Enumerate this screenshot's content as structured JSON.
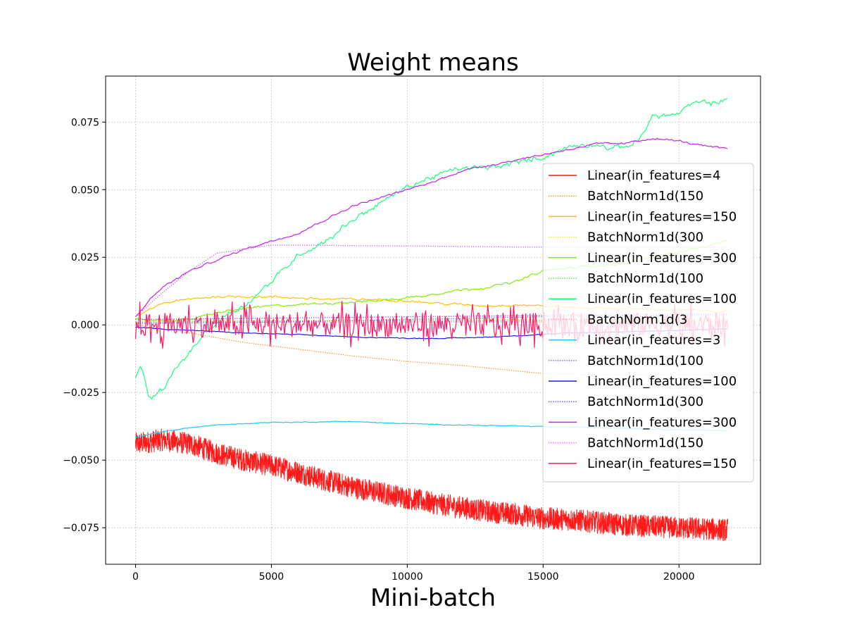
{
  "chart_data": {
    "type": "line",
    "title": "Weight means",
    "xlabel": "Mini-batch",
    "ylabel": "",
    "xlim": [
      -1100,
      23000
    ],
    "ylim": [
      -0.0885,
      0.092
    ],
    "x_ticks": [
      0,
      5000,
      10000,
      15000,
      20000
    ],
    "x_tick_labels": [
      "0",
      "5000",
      "10000",
      "15000",
      "20000"
    ],
    "y_ticks": [
      -0.075,
      -0.05,
      -0.025,
      0.0,
      0.025,
      0.05,
      0.075
    ],
    "y_tick_labels": [
      "−0.075",
      "−0.050",
      "−0.025",
      "0.000",
      "0.025",
      "0.050",
      "0.075"
    ],
    "grid": true,
    "legend_position": "center-right",
    "series": [
      {
        "name": "Linear(in_features=4",
        "color": "#ff1a1a",
        "style": "solid",
        "noise": 0.0042,
        "noise_type": "dense",
        "x": [
          0,
          1000,
          2000,
          3000,
          4000,
          5000,
          6000,
          7000,
          8000,
          9000,
          10000,
          11000,
          12000,
          13000,
          14000,
          15000,
          16000,
          17000,
          18000,
          19000,
          20000,
          21000,
          21800
        ],
        "y": [
          -0.044,
          -0.0425,
          -0.044,
          -0.0475,
          -0.05,
          -0.052,
          -0.0545,
          -0.0575,
          -0.06,
          -0.062,
          -0.064,
          -0.066,
          -0.0675,
          -0.069,
          -0.07,
          -0.0715,
          -0.072,
          -0.073,
          -0.074,
          -0.0745,
          -0.075,
          -0.0755,
          -0.0758
        ]
      },
      {
        "name": "BatchNorm1d(150",
        "color": "#ff7f0e",
        "style": "dotted",
        "noise": 0,
        "x": [
          0,
          2000,
          4000,
          6000,
          8000,
          10000,
          12000,
          14000,
          15000,
          16000,
          18000,
          20000,
          21800
        ],
        "y": [
          0.0,
          -0.003,
          -0.0065,
          -0.009,
          -0.0115,
          -0.0135,
          -0.015,
          -0.017,
          -0.018,
          -0.0183,
          -0.0185,
          -0.0185,
          -0.0185
        ]
      },
      {
        "name": "Linear(in_features=150",
        "color": "#ffc000",
        "style": "solid",
        "noise": 0.0006,
        "noise_type": "smooth",
        "x": [
          0,
          1000,
          2000,
          3000,
          4000,
          5000,
          6000,
          7000,
          8000,
          9000,
          10000,
          11000,
          12000,
          13000,
          14000,
          15000,
          16000,
          18000,
          20000,
          21800
        ],
        "y": [
          0.003,
          0.008,
          0.0095,
          0.0105,
          0.0105,
          0.0103,
          0.01,
          0.0095,
          0.0095,
          0.0093,
          0.009,
          0.008,
          0.0075,
          0.007,
          0.0075,
          0.007,
          0.0065,
          0.006,
          0.0055,
          0.005
        ]
      },
      {
        "name": "BatchNorm1d(300",
        "color": "#e8e800",
        "style": "dotted",
        "noise": 0,
        "x": [
          0,
          5000,
          10000,
          15000,
          20000,
          21800
        ],
        "y": [
          0.0015,
          0.0015,
          0.002,
          0.002,
          0.002,
          0.002
        ]
      },
      {
        "name": "Linear(in_features=300",
        "color": "#7ff000",
        "style": "solid",
        "noise": 0.0006,
        "noise_type": "smooth",
        "x": [
          0,
          1000,
          2000,
          3000,
          4000,
          5000,
          6000,
          7000,
          8000,
          9000,
          10000,
          11000,
          12000,
          13000,
          14000,
          15000,
          16000,
          17000,
          18000,
          19000,
          20000,
          21000,
          21800
        ],
        "y": [
          0.002,
          0.0018,
          0.002,
          0.0045,
          0.006,
          0.007,
          0.0075,
          0.008,
          0.0085,
          0.009,
          0.01,
          0.0115,
          0.013,
          0.014,
          0.016,
          0.02,
          0.021,
          0.022,
          0.0225,
          0.025,
          0.027,
          0.029,
          0.031
        ]
      },
      {
        "name": "BatchNorm1d(100",
        "color": "#33e533",
        "style": "dotted",
        "noise": 0,
        "x": [
          0,
          5000,
          10000,
          15000,
          20000,
          21800
        ],
        "y": [
          0.001,
          0.0015,
          0.0015,
          0.0015,
          0.0015,
          0.0015
        ]
      },
      {
        "name": "Linear(in_features=100",
        "color": "#19ff7a",
        "style": "solid",
        "noise": 0.0013,
        "noise_type": "smooth",
        "x": [
          0,
          200,
          500,
          1000,
          1500,
          2000,
          2500,
          3000,
          3500,
          4000,
          5000,
          6000,
          7000,
          8000,
          9000,
          10000,
          11000,
          12000,
          13000,
          14000,
          15000,
          16000,
          17000,
          17500,
          18000,
          18500,
          19000,
          20000,
          20500,
          21000,
          21800
        ],
        "y": [
          -0.019,
          -0.014,
          -0.028,
          -0.024,
          -0.016,
          -0.01,
          -0.0035,
          0.001,
          0.005,
          0.007,
          0.016,
          0.026,
          0.031,
          0.039,
          0.045,
          0.051,
          0.055,
          0.058,
          0.058,
          0.06,
          0.062,
          0.066,
          0.067,
          0.065,
          0.066,
          0.068,
          0.077,
          0.078,
          0.082,
          0.082,
          0.083
        ]
      },
      {
        "name": "BatchNorm1d(3",
        "color": "#ff88d0",
        "style": "dotted",
        "noise": 0,
        "x": [
          0,
          5000,
          10000,
          15000,
          20000,
          21800
        ],
        "y": [
          0.0008,
          0.001,
          0.001,
          0.001,
          0.001,
          0.001
        ]
      },
      {
        "name": "Linear(in_features=3",
        "color": "#19c8ff",
        "style": "solid",
        "noise": 0.0002,
        "noise_type": "smooth",
        "x": [
          0,
          1000,
          2000,
          3000,
          4000,
          5000,
          6000,
          7000,
          8000,
          9000,
          10000,
          11000,
          12000,
          13000,
          14000,
          15000,
          16000,
          17000,
          18000,
          19000,
          20000,
          21000,
          21800
        ],
        "y": [
          -0.0415,
          -0.0395,
          -0.038,
          -0.037,
          -0.0365,
          -0.036,
          -0.036,
          -0.0358,
          -0.0357,
          -0.0362,
          -0.0365,
          -0.0368,
          -0.037,
          -0.0372,
          -0.0374,
          -0.0376,
          -0.0378,
          -0.038,
          -0.0382,
          -0.0385,
          -0.0388,
          -0.039,
          -0.0392
        ]
      },
      {
        "name": "BatchNorm1d(100",
        "color": "#3b6bff",
        "style": "dotted",
        "noise": 0,
        "x": [
          0,
          5000,
          10000,
          15000,
          20000,
          21800
        ],
        "y": [
          0.0005,
          0.001,
          0.002,
          0.003,
          0.0035,
          0.0035
        ]
      },
      {
        "name": "Linear(in_features=100",
        "color": "#1a1aff",
        "style": "solid",
        "noise": 0.0002,
        "noise_type": "smooth",
        "x": [
          0,
          1000,
          2000,
          3000,
          4000,
          5000,
          6000,
          7000,
          8000,
          9000,
          10000,
          11000,
          12000,
          13000,
          14000,
          15000,
          16000,
          18000,
          20000,
          21800
        ],
        "y": [
          -0.0008,
          -0.0015,
          -0.002,
          -0.0025,
          -0.003,
          -0.0033,
          -0.0036,
          -0.004,
          -0.0045,
          -0.0047,
          -0.0049,
          -0.005,
          -0.0048,
          -0.0045,
          -0.004,
          -0.0035,
          -0.003,
          -0.0025,
          -0.002,
          -0.0015
        ]
      },
      {
        "name": "BatchNorm1d(300",
        "color": "#8a2be2",
        "style": "dotted",
        "noise": 0,
        "x": [
          0,
          5000,
          10000,
          15000,
          20000,
          21800
        ],
        "y": [
          0.002,
          0.0025,
          0.003,
          0.0035,
          0.004,
          0.004
        ]
      },
      {
        "name": "Linear(in_features=300",
        "color": "#c81ef5",
        "style": "solid",
        "noise": 0.0005,
        "noise_type": "smooth",
        "x": [
          0,
          500,
          1000,
          1500,
          2000,
          3000,
          4000,
          5000,
          6000,
          7000,
          8000,
          9000,
          10000,
          11000,
          12000,
          13000,
          14000,
          15000,
          16000,
          17000,
          18000,
          19000,
          20000,
          21000,
          21800
        ],
        "y": [
          0.003,
          0.009,
          0.014,
          0.017,
          0.02,
          0.024,
          0.028,
          0.031,
          0.034,
          0.039,
          0.044,
          0.047,
          0.05,
          0.053,
          0.057,
          0.059,
          0.061,
          0.063,
          0.065,
          0.067,
          0.067,
          0.069,
          0.068,
          0.066,
          0.065
        ]
      },
      {
        "name": "BatchNorm1d(150",
        "color": "#ff4dff",
        "style": "dotted",
        "noise": 0,
        "x": [
          0,
          1000,
          2000,
          3000,
          4000,
          5000,
          6000,
          8000,
          10000,
          12000,
          14000,
          16000,
          18000,
          20000,
          21800
        ],
        "y": [
          0.003,
          0.012,
          0.02,
          0.0265,
          0.028,
          0.0295,
          0.0295,
          0.0293,
          0.0292,
          0.029,
          0.0288,
          0.0287,
          0.0287,
          0.0287,
          0.0287
        ]
      },
      {
        "name": "Linear(in_features=150",
        "color": "#ff1a66",
        "style": "solid",
        "noise": 0.0045,
        "noise_type": "spiky",
        "x": [
          0,
          5000,
          10000,
          15000,
          20000,
          21800
        ],
        "y": [
          0.0,
          0.0,
          0.0,
          0.0,
          0.0,
          0.0
        ]
      }
    ],
    "extra_curves": [
      {
        "color": "#00e5e5",
        "style": "dotted",
        "x": [
          0,
          1000,
          2000,
          3000,
          4000,
          5000,
          6000,
          8000,
          10000,
          12000,
          14000,
          16000,
          18000,
          20000,
          21800
        ],
        "y": [
          0.003,
          0.012,
          0.02,
          0.0265,
          0.028,
          0.0295,
          0.0295,
          0.0293,
          0.0292,
          0.029,
          0.0288,
          0.0287,
          0.0287,
          0.0287,
          0.0287
        ]
      }
    ]
  }
}
